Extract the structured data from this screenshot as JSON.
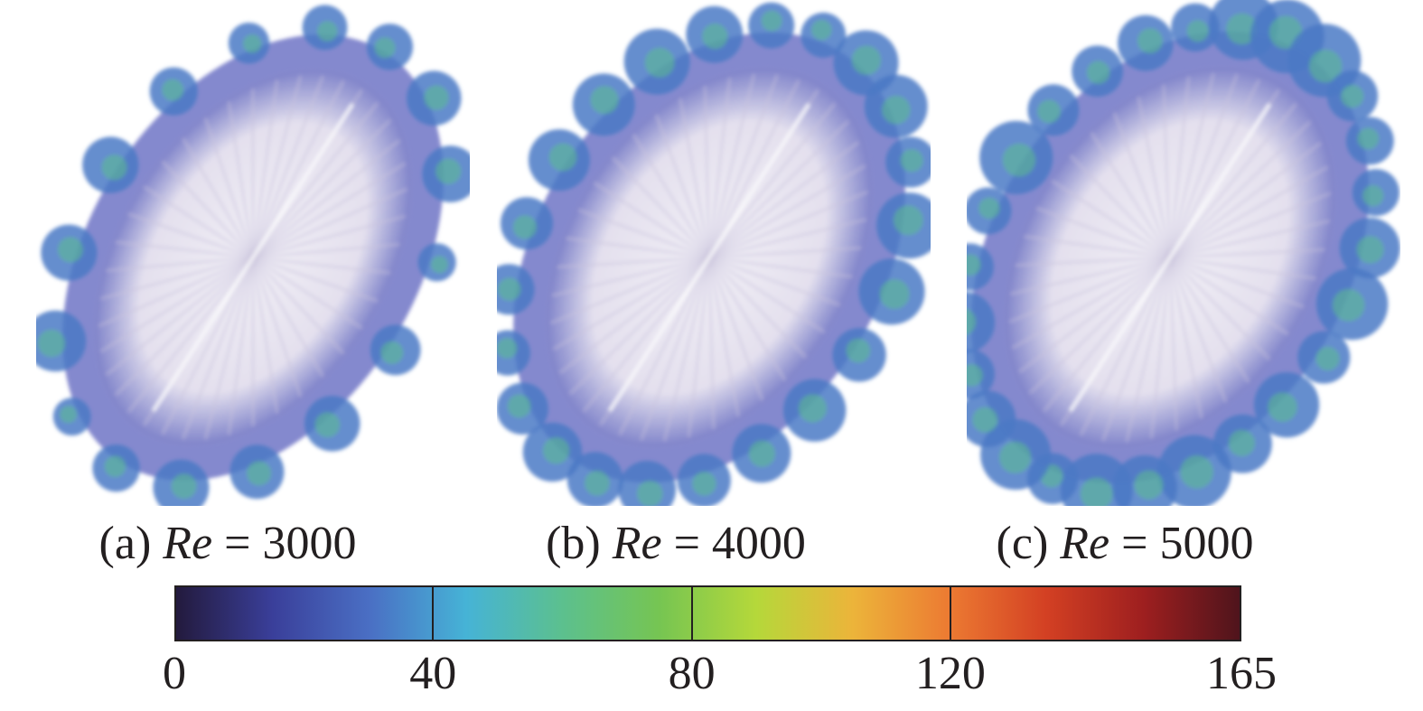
{
  "panels": [
    {
      "id": "a",
      "prefix": "(a) ",
      "symbol": "Re",
      "relation": " = ",
      "value": "3000"
    },
    {
      "id": "b",
      "prefix": "(b) ",
      "symbol": "Re",
      "relation": " = ",
      "value": "4000"
    },
    {
      "id": "c",
      "prefix": "(c) ",
      "symbol": "Re",
      "relation": " = ",
      "value": "5000"
    }
  ],
  "colorbar": {
    "min": 0,
    "max": 165,
    "ticks": [
      "0",
      "40",
      "80",
      "120",
      "165"
    ],
    "tick_values": [
      0,
      40,
      80,
      120,
      165
    ],
    "colormap": "turbo",
    "stops": [
      "#231a3d",
      "#3a3f9a",
      "#4a6fc4",
      "#46b3d6",
      "#5cc08e",
      "#76c552",
      "#b5d83a",
      "#ecb43a",
      "#ec7a32",
      "#d34023",
      "#9e1f1f",
      "#4f141c"
    ]
  },
  "colors": {
    "core": "#e4e0ee",
    "shell": "#5b62bd",
    "lobe": "#4a79c6",
    "highlight": "#5cc08e",
    "text": "#231f20"
  }
}
